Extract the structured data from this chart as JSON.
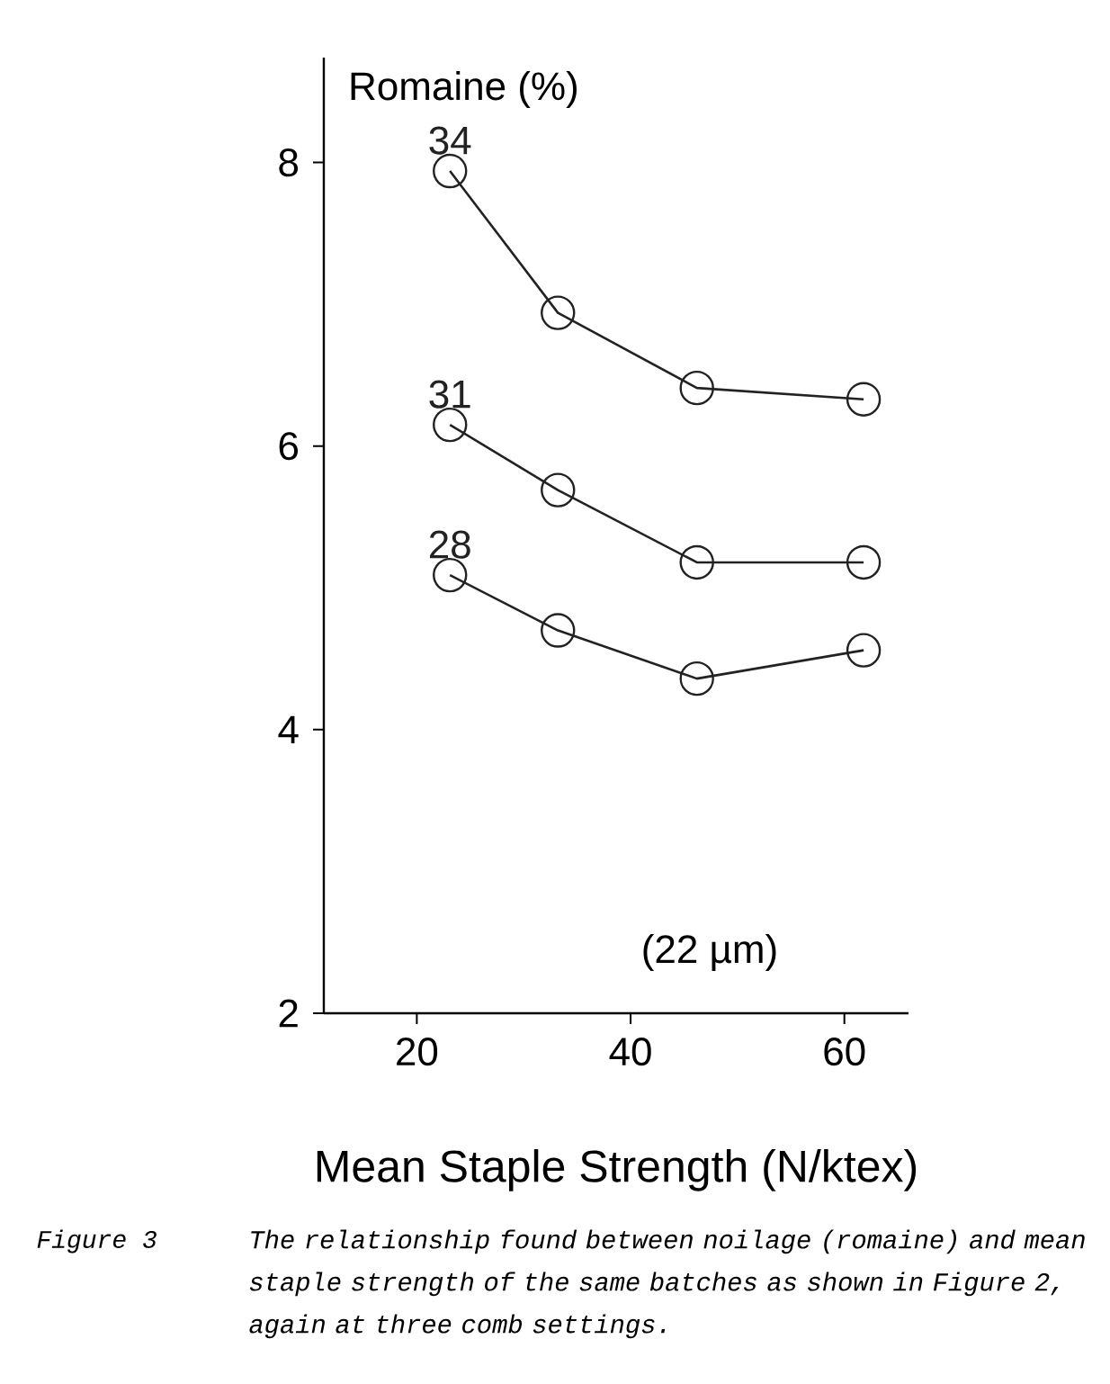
{
  "chart_data": {
    "type": "line",
    "xlabel": "Mean Staple Strength (N/ktex)",
    "ylabel": "Romaine (%)",
    "x": [
      23.1,
      33.2,
      46.2,
      61.8
    ],
    "series": [
      {
        "name": "34",
        "color": "#222222",
        "values": [
          7.94,
          6.94,
          6.41,
          6.33
        ]
      },
      {
        "name": "31",
        "color": "#222222",
        "values": [
          6.15,
          5.69,
          5.18,
          5.18
        ]
      },
      {
        "name": "28",
        "color": "#222222",
        "values": [
          5.09,
          4.7,
          4.36,
          4.56
        ]
      }
    ],
    "xlim": [
      11.3,
      66
    ],
    "ylim": [
      2,
      8.74
    ],
    "xticks": [
      20,
      40,
      60
    ],
    "yticks": [
      2,
      4,
      6,
      8
    ],
    "marker": "circle",
    "line_style": "solid",
    "annotations": [
      "(22 µm)",
      "Figure 3",
      "The relationship found between noilage (romaine) and mean staple strength of the same batches as shown in Figure 2, again at three comb settings."
    ]
  }
}
